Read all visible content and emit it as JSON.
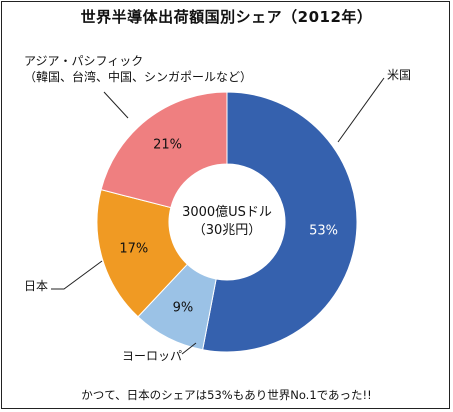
{
  "chart_data": {
    "type": "pie",
    "title": "世界半導体出荷額国別シェア（2012年）",
    "center_text": [
      "3000億USドル",
      "（30兆円）"
    ],
    "slices": [
      {
        "label": "米国",
        "value": 53,
        "value_label": "53%",
        "color": "#3561ae",
        "label_color": "#ffffff"
      },
      {
        "label": "ヨーロッパ",
        "value": 9,
        "value_label": "9%",
        "color": "#9bc2e6",
        "label_color": "#111111"
      },
      {
        "label": "日本",
        "value": 17,
        "value_label": "17%",
        "color": "#f09a23",
        "label_color": "#111111"
      },
      {
        "label": "アジア・パシフィック\n（韓国、台湾、中国、シンガポールなど）",
        "label_lines": [
          "アジア・パシフィック",
          "（韓国、台湾、中国、シンガポールなど）"
        ],
        "value": 21,
        "value_label": "21%",
        "color": "#ef7f80",
        "label_color": "#111111"
      }
    ],
    "footer": "かつて、日本のシェアは53%もあり世界No.1であった!!"
  }
}
